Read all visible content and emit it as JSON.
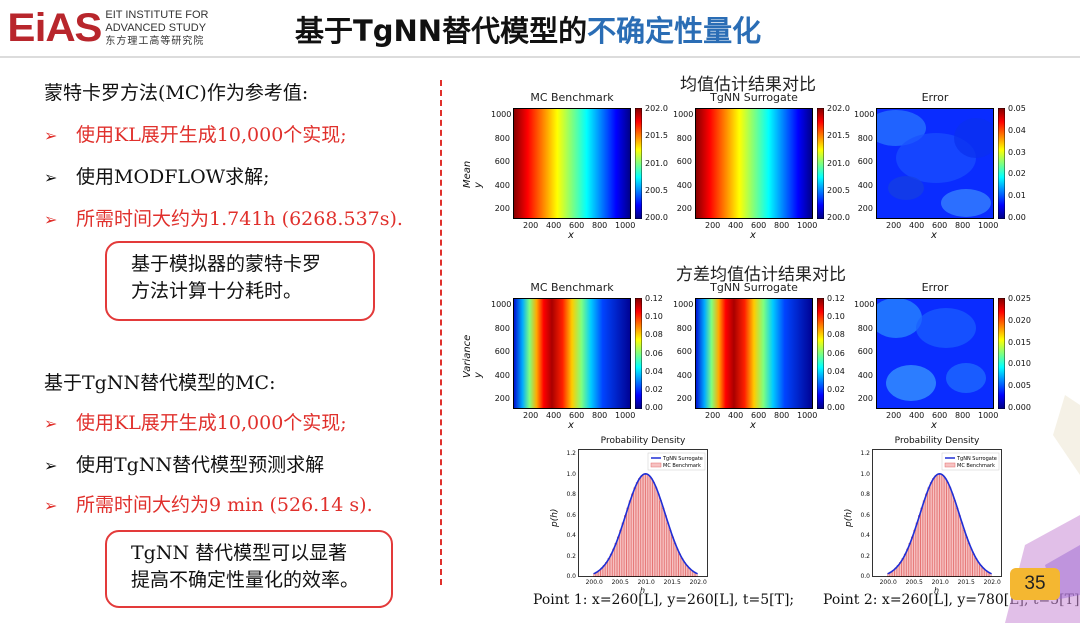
{
  "logo": {
    "mark": [
      "E",
      "i",
      "A",
      "S"
    ],
    "line1": "EIT INSTITUTE FOR",
    "line2": "ADVANCED STUDY",
    "line3": "东方理工高等研究院"
  },
  "title": {
    "main": "基于TgNN替代模型的",
    "highlight": "不确定性量化"
  },
  "mc": {
    "heading": "蒙特卡罗方法(MC)作为参考值:",
    "items": [
      {
        "text": "使用KL展开生成10,000个实现;",
        "color": "red"
      },
      {
        "text": "使用MODFLOW求解;",
        "color": "black"
      },
      {
        "text": "所需时间大约为1.741h (6268.537s).",
        "color": "red"
      }
    ],
    "callout": [
      "基于模拟器的蒙特卡罗",
      "方法计算十分耗时。"
    ]
  },
  "tgnn": {
    "heading": "基于TgNN替代模型的MC:",
    "items": [
      {
        "text": "使用KL展开生成10,000个实现;",
        "color": "red"
      },
      {
        "text": "使用TgNN替代模型预测求解",
        "color": "black"
      },
      {
        "text": "所需时间大约为9 min (526.14 s).",
        "color": "red"
      }
    ],
    "callout": [
      "TgNN 替代模型可以显著",
      "提高不确定性量化的效率。"
    ]
  },
  "bullet_glyph": "➢",
  "mean_section": {
    "title": "均值估计结果对比",
    "row_label": [
      "Mean",
      "y"
    ],
    "panels": [
      {
        "title": "MC Benchmark",
        "cbar": [
          "202.0",
          "201.5",
          "201.0",
          "200.5",
          "200.0"
        ],
        "pattern": "mean"
      },
      {
        "title": "TgNN Surrogate",
        "cbar": [
          "202.0",
          "201.5",
          "201.0",
          "200.5",
          "200.0"
        ],
        "pattern": "mean"
      },
      {
        "title": "Error",
        "cbar": [
          "0.05",
          "0.04",
          "0.03",
          "0.02",
          "0.01",
          "0.00"
        ],
        "pattern": "error1"
      }
    ]
  },
  "var_section": {
    "title": "方差均值估计结果对比",
    "row_label": [
      "Variance",
      "y"
    ],
    "panels": [
      {
        "title": "MC Benchmark",
        "cbar": [
          "0.12",
          "0.10",
          "0.08",
          "0.06",
          "0.04",
          "0.02",
          "0.00"
        ],
        "pattern": "var"
      },
      {
        "title": "TgNN Surrogate",
        "cbar": [
          "0.12",
          "0.10",
          "0.08",
          "0.06",
          "0.04",
          "0.02",
          "0.00"
        ],
        "pattern": "var"
      },
      {
        "title": "Error",
        "cbar": [
          "0.025",
          "0.020",
          "0.015",
          "0.010",
          "0.005",
          "0.000"
        ],
        "pattern": "error2"
      }
    ]
  },
  "axes": {
    "y_ticks": [
      "1000",
      "800",
      "600",
      "400",
      "200"
    ],
    "x_ticks": [
      "200",
      "400",
      "600",
      "800",
      "1000"
    ],
    "x_label": "x"
  },
  "density_plots": [
    {
      "title": "Probability Density",
      "y_label": "p(h)",
      "x_label": "h",
      "legend": [
        "TgNN Surrogate",
        "MC Benchmark"
      ],
      "y_ticks": [
        "1.2",
        "1.0",
        "0.8",
        "0.6",
        "0.4",
        "0.2",
        "0.0"
      ],
      "x_ticks": [
        "200.0",
        "200.5",
        "201.0",
        "201.5",
        "202.0"
      ],
      "caption": "Point 1: x=260[L], y=260[L], t=5[T];"
    },
    {
      "title": "Probability Density",
      "y_label": "p(h)",
      "x_label": "h",
      "legend": [
        "TgNN Surrogate",
        "MC Benchmark"
      ],
      "y_ticks": [
        "1.2",
        "1.0",
        "0.8",
        "0.6",
        "0.4",
        "0.2",
        "0.0"
      ],
      "x_ticks": [
        "200.0",
        "200.5",
        "201.0",
        "201.5",
        "202.0"
      ],
      "caption": "Point 2: x=260[L], y=780[L], t=5[T]"
    }
  ],
  "page_number": "35",
  "colors": {
    "red": "#e0302c",
    "title_blue": "#2a6db5",
    "logo_red": "#b8262c",
    "page_badge": "#f4b731"
  }
}
